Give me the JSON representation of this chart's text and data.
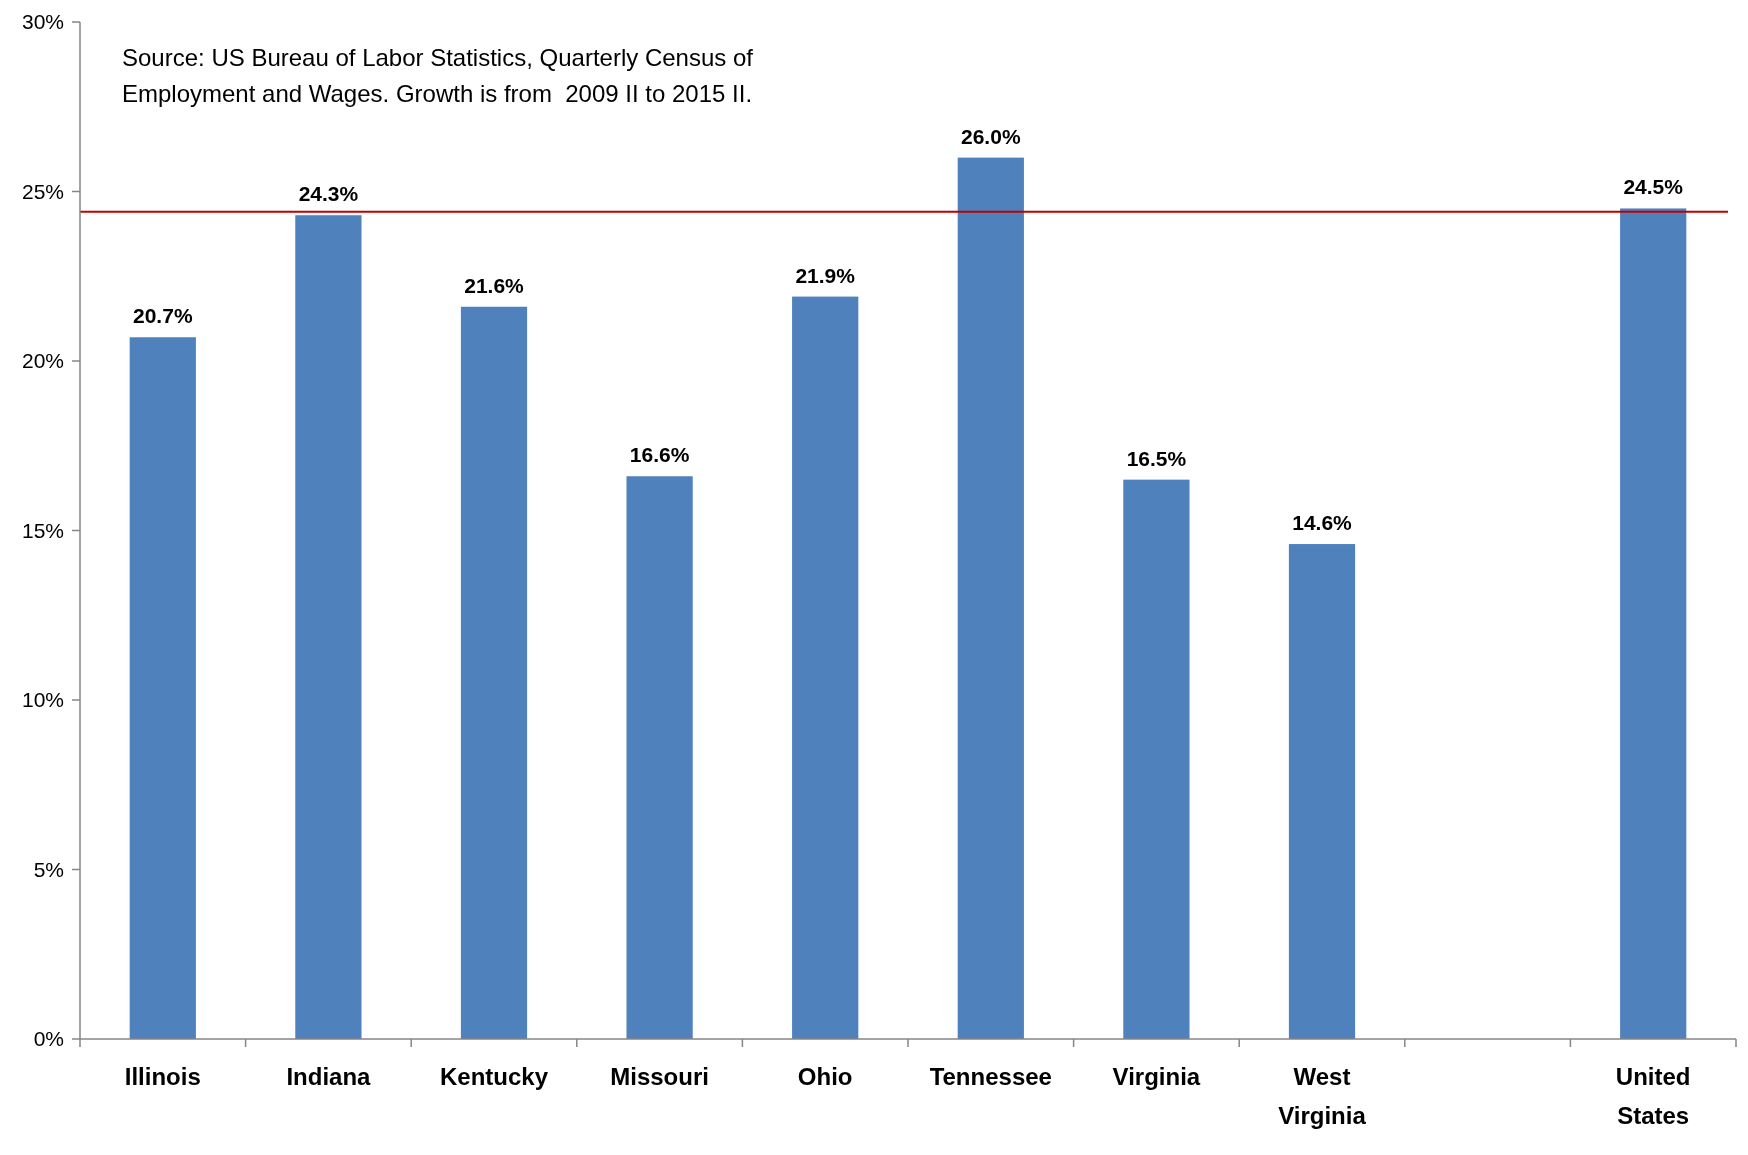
{
  "chart_data": {
    "type": "bar",
    "annotations": [
      "Source: US Bureau of Labor Statistics, Quarterly Census of Employment and Wages. Growth is from  2009 II to 2015 II."
    ],
    "categories": [
      "Illinois",
      "Indiana",
      "Kentucky",
      "Missouri",
      "Ohio",
      "Tennessee",
      "Virginia",
      "West Virginia",
      null,
      "United States"
    ],
    "values": [
      20.7,
      24.3,
      21.6,
      16.6,
      21.9,
      26.0,
      16.5,
      14.6,
      null,
      24.5
    ],
    "value_labels": [
      "20.7%",
      "24.3%",
      "21.6%",
      "16.6%",
      "21.9%",
      "26.0%",
      "16.5%",
      "14.6%",
      null,
      "24.5%"
    ],
    "color": "#4f81bd",
    "ylim": [
      0,
      30
    ],
    "yticks": [
      {
        "value": 0,
        "label": "0%"
      },
      {
        "value": 5,
        "label": "5%"
      },
      {
        "value": 10,
        "label": "10%"
      },
      {
        "value": 15,
        "label": "15%"
      },
      {
        "value": 20,
        "label": "20%"
      },
      {
        "value": 25,
        "label": "25%"
      },
      {
        "value": 30,
        "label": "30%"
      }
    ],
    "ref_lines": [
      {
        "axis": "y",
        "value": 24.4,
        "color": "#c00000"
      }
    ]
  }
}
